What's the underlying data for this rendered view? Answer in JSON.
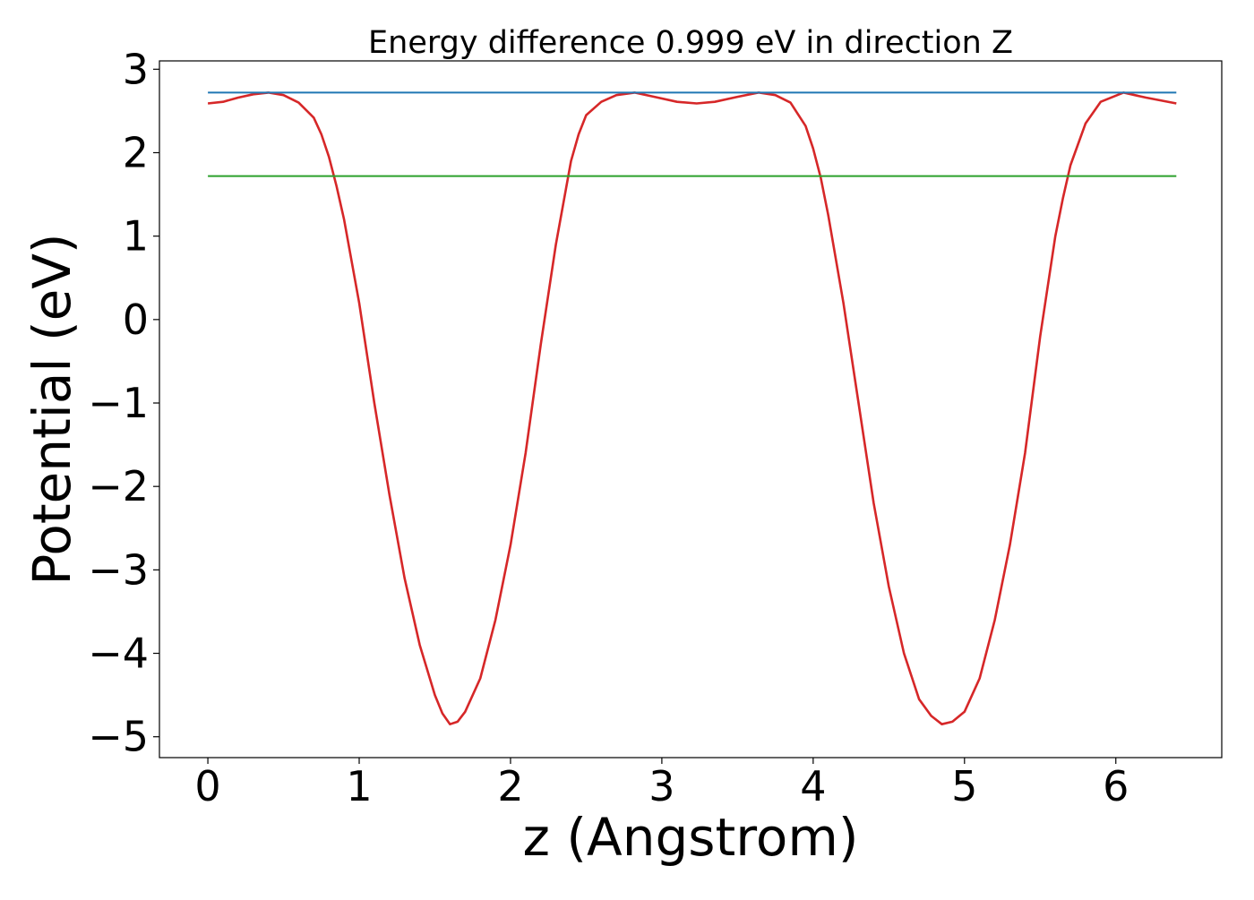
{
  "chart_data": {
    "type": "line",
    "title": "Energy difference 0.999 eV in direction Z",
    "xlabel": "z (Angstrom)",
    "ylabel": "Potential (eV)",
    "xlim": [
      -0.32,
      6.7
    ],
    "ylim": [
      -5.25,
      3.1
    ],
    "xticks": [
      0,
      1,
      2,
      3,
      4,
      5,
      6
    ],
    "xtick_labels": [
      "0",
      "1",
      "2",
      "3",
      "4",
      "5",
      "6"
    ],
    "yticks": [
      3,
      2,
      1,
      0,
      -1,
      -2,
      -3,
      -4,
      -5
    ],
    "ytick_labels": [
      "3",
      "2",
      "1",
      "0",
      "−1",
      "−2",
      "−3",
      "−4",
      "−5"
    ],
    "grid": false,
    "legend": "none",
    "series": [
      {
        "color": "#d62728",
        "x": [
          0.0,
          0.1,
          0.2,
          0.3,
          0.4,
          0.5,
          0.6,
          0.7,
          0.75,
          0.8,
          0.85,
          0.9,
          1.0,
          1.1,
          1.2,
          1.3,
          1.4,
          1.5,
          1.55,
          1.6,
          1.65,
          1.7,
          1.8,
          1.9,
          2.0,
          2.1,
          2.2,
          2.3,
          2.4,
          2.45,
          2.5,
          2.6,
          2.7,
          2.82,
          2.95,
          3.1,
          3.23,
          3.35,
          3.5,
          3.64,
          3.75,
          3.85,
          3.95,
          4.0,
          4.05,
          4.1,
          4.2,
          4.3,
          4.4,
          4.5,
          4.6,
          4.7,
          4.78,
          4.85,
          4.92,
          5.0,
          5.1,
          5.2,
          5.3,
          5.4,
          5.5,
          5.6,
          5.65,
          5.7,
          5.8,
          5.9,
          6.05,
          6.2,
          6.4
        ],
        "y": [
          2.59,
          2.61,
          2.66,
          2.7,
          2.72,
          2.69,
          2.6,
          2.42,
          2.22,
          1.95,
          1.6,
          1.2,
          0.2,
          -1.0,
          -2.1,
          -3.1,
          -3.9,
          -4.5,
          -4.72,
          -4.85,
          -4.82,
          -4.7,
          -4.3,
          -3.6,
          -2.7,
          -1.6,
          -0.3,
          0.9,
          1.9,
          2.22,
          2.45,
          2.61,
          2.69,
          2.72,
          2.67,
          2.61,
          2.59,
          2.61,
          2.67,
          2.72,
          2.69,
          2.6,
          2.32,
          2.05,
          1.7,
          1.25,
          0.2,
          -1.0,
          -2.2,
          -3.2,
          -4.0,
          -4.55,
          -4.75,
          -4.85,
          -4.82,
          -4.7,
          -4.3,
          -3.6,
          -2.7,
          -1.6,
          -0.2,
          1.0,
          1.45,
          1.85,
          2.35,
          2.61,
          2.72,
          2.66,
          2.59
        ]
      },
      {
        "color": "#1f77b4",
        "x": [
          0.0,
          6.4
        ],
        "y": [
          2.72,
          2.72
        ]
      },
      {
        "color": "#2ca02c",
        "x": [
          0.0,
          6.4
        ],
        "y": [
          1.72,
          1.72
        ]
      }
    ]
  }
}
